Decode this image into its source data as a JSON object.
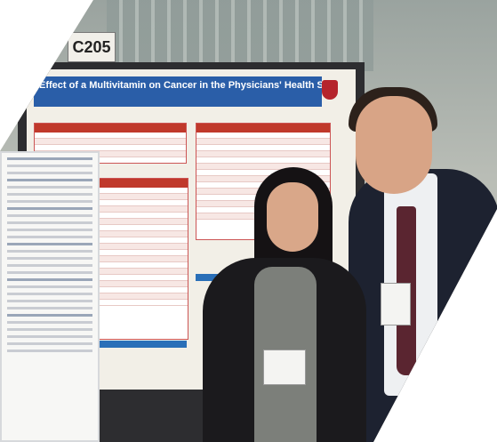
{
  "photo": {
    "booth_sign": "C205",
    "poster_title": "Effect of a Multivitamin on Cancer in the Physicians' Health Study II",
    "colors": {
      "poster_title_bar": "#2a5ea8",
      "table_header": "#c0392b",
      "board": "#2d2d30"
    },
    "icons": [
      "university-shield-icon"
    ]
  }
}
